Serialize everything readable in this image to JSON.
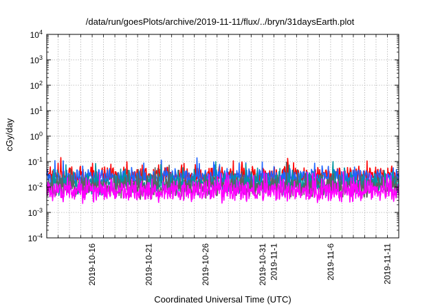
{
  "chart_data": {
    "type": "line",
    "title": "/data/run/goesPlots/archive/2019-11-11/flux/../bryn/31daysEarth.plot",
    "xlabel": "Coordinated Universal Time (UTC)",
    "ylabel": "cGy/day",
    "y_scale": "log",
    "ylim": [
      0.0001,
      10000
    ],
    "xlim": [
      "2019-10-12",
      "2019-11-12"
    ],
    "y_ticks": [
      {
        "mantissa": "10",
        "exp": "-4"
      },
      {
        "mantissa": "10",
        "exp": "-3"
      },
      {
        "mantissa": "10",
        "exp": "-2"
      },
      {
        "mantissa": "10",
        "exp": "-1"
      },
      {
        "mantissa": "10",
        "exp": "0"
      },
      {
        "mantissa": "10",
        "exp": "1"
      },
      {
        "mantissa": "10",
        "exp": "2"
      },
      {
        "mantissa": "10",
        "exp": "3"
      },
      {
        "mantissa": "10",
        "exp": "4"
      }
    ],
    "x_tick_labels": [
      {
        "label": "2019-10-16",
        "date": "2019-10-16"
      },
      {
        "label": "2019-10-21",
        "date": "2019-10-21"
      },
      {
        "label": "2019-10-26",
        "date": "2019-10-26"
      },
      {
        "label": "2019-10-31",
        "date": "2019-10-31"
      },
      {
        "label": "2019-11-1",
        "date": "2019-11-01"
      },
      {
        "label": "2019-11-6",
        "date": "2019-11-06"
      },
      {
        "label": "2019-11-11",
        "date": "2019-11-11"
      }
    ],
    "grid": true,
    "series": [
      {
        "color": "#ff0000",
        "level": 0.027,
        "spread": 0.35
      },
      {
        "color": "#1e64ff",
        "level": 0.023,
        "spread": 0.35
      },
      {
        "color": "#0096a0",
        "level": 0.013,
        "spread": 0.45
      },
      {
        "color": "#606060",
        "level": 0.01,
        "spread": 0.5
      },
      {
        "color": "#ff00ff",
        "level": 0.007,
        "spread": 0.55
      }
    ]
  }
}
